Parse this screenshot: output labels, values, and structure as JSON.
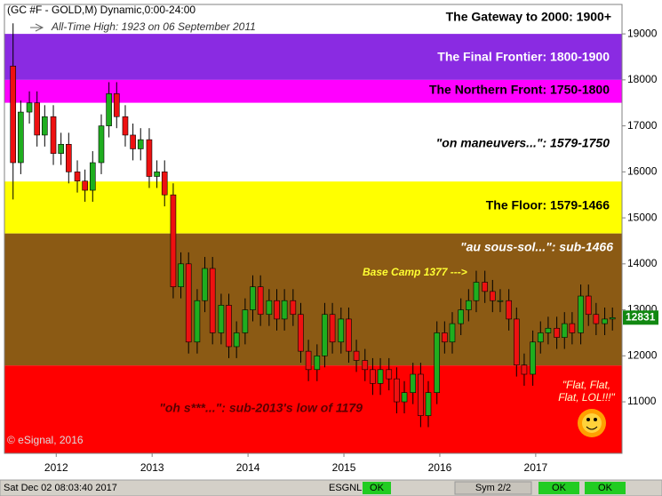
{
  "chart_data": {
    "type": "candlestick",
    "header": "(GC #F - GOLD,M) Dynamic,0:00-24:00",
    "subtitle": "All-Time High:  1923 on 06 September 2011",
    "xlim": [
      2011.46,
      2017.9
    ],
    "xticks": [
      2012,
      2013,
      2014,
      2015,
      2016,
      2017
    ],
    "ylim": [
      9880,
      19640
    ],
    "yticks": [
      11000,
      12000,
      13000,
      14000,
      15000,
      16000,
      17000,
      18000,
      19000
    ],
    "up_color": "#1fae1f",
    "down_color": "#ee1111",
    "bands": [
      {
        "from": 19000,
        "color": "#ffffff",
        "label": "The Gateway to 2000:  1900+",
        "label_color": "#000000"
      },
      {
        "from": 18000,
        "to": 19000,
        "color": "#8a2be2",
        "label": "The Final Frontier:  1800-1900",
        "label_color": "#ffffff"
      },
      {
        "from": 17500,
        "to": 18000,
        "color": "#ff00ff",
        "label": "The Northern Front:  1750-1800",
        "label_color": "#000000"
      },
      {
        "from": 15790,
        "to": 17500,
        "color": "#ffffff",
        "label": "\"on maneuvers...\":  1579-1750",
        "label_color": "#000000"
      },
      {
        "from": 14660,
        "to": 15790,
        "color": "#ffff00",
        "label": "The Floor:  1579-1466",
        "label_color": "#000000"
      },
      {
        "from": 11790,
        "to": 14660,
        "color": "#8b5a14",
        "label": "\"au sous-sol...\":  sub-1466",
        "label_color": "#ffffff"
      },
      {
        "to": 11790,
        "color": "#ff0000",
        "label": "\"oh s***...\":  sub-2013's low of 1179",
        "label_color": "#5a0000"
      }
    ],
    "annotations": {
      "base_camp": "Base Camp 1377 --->",
      "flat": [
        "\"Flat, Flat,",
        "Flat, LOL!!!\""
      ],
      "copyright": "© eSignal, 2016"
    },
    "x": [
      2011.55,
      2011.63,
      2011.72,
      2011.8,
      2011.88,
      2011.97,
      2012.05,
      2012.13,
      2012.22,
      2012.3,
      2012.38,
      2012.47,
      2012.55,
      2012.63,
      2012.72,
      2012.8,
      2012.88,
      2012.97,
      2013.05,
      2013.13,
      2013.22,
      2013.3,
      2013.38,
      2013.47,
      2013.55,
      2013.63,
      2013.72,
      2013.8,
      2013.88,
      2013.97,
      2014.05,
      2014.13,
      2014.22,
      2014.3,
      2014.38,
      2014.47,
      2014.55,
      2014.63,
      2014.72,
      2014.8,
      2014.88,
      2014.97,
      2015.05,
      2015.13,
      2015.22,
      2015.3,
      2015.38,
      2015.47,
      2015.55,
      2015.63,
      2015.72,
      2015.8,
      2015.88,
      2015.97,
      2016.05,
      2016.13,
      2016.22,
      2016.3,
      2016.38,
      2016.47,
      2016.55,
      2016.63,
      2016.72,
      2016.8,
      2016.88,
      2016.97,
      2017.05,
      2017.13,
      2017.22,
      2017.3,
      2017.38,
      2017.47,
      2017.55,
      2017.63,
      2017.72,
      2017.8
    ],
    "open": [
      18300,
      16200,
      17300,
      17500,
      16800,
      17200,
      16400,
      16600,
      16000,
      15800,
      15600,
      16200,
      17000,
      17700,
      17200,
      16800,
      16500,
      16700,
      15900,
      16000,
      15500,
      13500,
      14000,
      12300,
      13200,
      13900,
      12500,
      13100,
      12200,
      12500,
      13000,
      13500,
      12900,
      13200,
      12800,
      13200,
      12900,
      12100,
      11700,
      12000,
      12900,
      12300,
      12800,
      12100,
      11900,
      11700,
      11400,
      11700,
      11500,
      11000,
      11200,
      11600,
      10700,
      11200,
      12500,
      12300,
      12700,
      13000,
      13200,
      13600,
      13400,
      13200,
      13200,
      12800,
      11800,
      11600,
      12300,
      12500,
      12600,
      12400,
      12700,
      12500,
      13300,
      12900,
      12700,
      12800
    ],
    "high": [
      19230,
      17550,
      17750,
      17750,
      17450,
      17450,
      16850,
      16850,
      16250,
      16050,
      16450,
      17250,
      17950,
      17950,
      17450,
      17050,
      16950,
      16950,
      16250,
      16250,
      15750,
      14250,
      14250,
      13450,
      14150,
      14150,
      13350,
      13350,
      12750,
      13250,
      13750,
      13750,
      13450,
      13450,
      13450,
      13450,
      13150,
      12350,
      12250,
      13150,
      13150,
      13050,
      13050,
      12350,
      12150,
      11950,
      11950,
      11950,
      11750,
      11450,
      11850,
      11850,
      11450,
      12750,
      12750,
      12950,
      13250,
      13450,
      13850,
      13850,
      13650,
      13450,
      13450,
      13050,
      12050,
      12550,
      12750,
      12850,
      12850,
      12950,
      12950,
      13550,
      13550,
      13150,
      13050,
      13050
    ],
    "low": [
      15400,
      15950,
      17050,
      16550,
      16550,
      16150,
      16150,
      15750,
      15550,
      15350,
      15350,
      15950,
      16750,
      16950,
      16550,
      16250,
      16250,
      15650,
      15650,
      15250,
      13250,
      13250,
      12050,
      12050,
      12950,
      12250,
      12250,
      11950,
      11950,
      12250,
      12750,
      12650,
      12650,
      12550,
      12550,
      12650,
      11850,
      11450,
      11450,
      11750,
      12050,
      12050,
      11850,
      11650,
      11450,
      11150,
      11150,
      11250,
      10750,
      10750,
      10950,
      10450,
      10450,
      10950,
      12050,
      12050,
      12450,
      12750,
      12950,
      13150,
      12950,
      12950,
      12550,
      11550,
      11350,
      11350,
      12050,
      12250,
      12150,
      12150,
      12250,
      12250,
      12650,
      12450,
      12450,
      12550
    ],
    "close": [
      16200,
      17300,
      17500,
      16800,
      17200,
      16400,
      16600,
      16000,
      15800,
      15600,
      16200,
      17000,
      17700,
      17200,
      16800,
      16500,
      16700,
      15900,
      16000,
      15500,
      13500,
      14000,
      12300,
      13200,
      13900,
      12500,
      13100,
      12200,
      12500,
      13000,
      13500,
      12900,
      13200,
      12800,
      13200,
      12900,
      12100,
      11700,
      12000,
      12900,
      12300,
      12800,
      12100,
      11900,
      11700,
      11400,
      11700,
      11500,
      11000,
      11200,
      11600,
      10700,
      11200,
      12500,
      12300,
      12700,
      13000,
      13200,
      13600,
      13400,
      13200,
      13200,
      12800,
      11800,
      11600,
      12300,
      12500,
      12600,
      12400,
      12700,
      12500,
      13300,
      12900,
      12700,
      12800,
      12831
    ],
    "status": {
      "datetime": "Sat Dec 02 08:03:40 2017",
      "feed": "ESGNL:",
      "feed_state": "OK",
      "symbols": "Sym 2/2",
      "state_1": "OK",
      "state_2": "OK"
    }
  }
}
